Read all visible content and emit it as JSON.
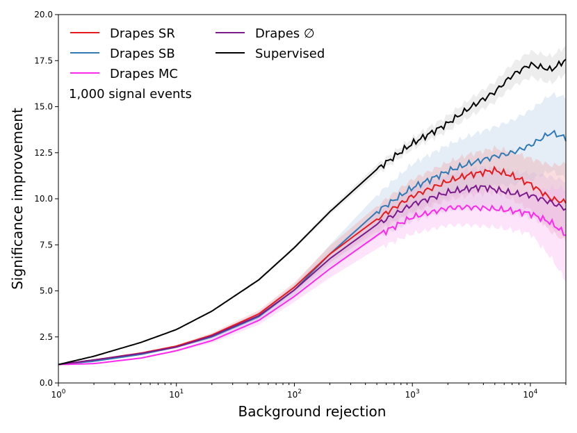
{
  "chart_data": {
    "type": "line",
    "xscale": "log",
    "xlabel": "Background rejection",
    "ylabel": "Significance improvement",
    "xlim": [
      1,
      20000
    ],
    "ylim": [
      0,
      20
    ],
    "xticks": [
      {
        "value": 1,
        "base": "10",
        "exp": "0"
      },
      {
        "value": 10,
        "base": "10",
        "exp": "1"
      },
      {
        "value": 100,
        "base": "10",
        "exp": "2"
      },
      {
        "value": 1000,
        "base": "10",
        "exp": "3"
      },
      {
        "value": 10000,
        "base": "10",
        "exp": "4"
      }
    ],
    "yticks": [
      {
        "value": 0,
        "label": "0.0"
      },
      {
        "value": 2.5,
        "label": "2.5"
      },
      {
        "value": 5,
        "label": "5.0"
      },
      {
        "value": 7.5,
        "label": "7.5"
      },
      {
        "value": 10,
        "label": "10.0"
      },
      {
        "value": 12.5,
        "label": "12.5"
      },
      {
        "value": 15,
        "label": "15.0"
      },
      {
        "value": 17.5,
        "label": "17.5"
      },
      {
        "value": 20,
        "label": "20.0"
      }
    ],
    "annotation": "1,000 signal events",
    "series": [
      {
        "name": "Drapes SR",
        "color": "#e8191c",
        "band_color": "#f2a0a2",
        "points": [
          [
            1,
            1.0
          ],
          [
            2,
            1.25
          ],
          [
            5,
            1.62
          ],
          [
            10,
            2.0
          ],
          [
            20,
            2.6
          ],
          [
            50,
            3.75
          ],
          [
            100,
            5.2
          ],
          [
            200,
            7.0
          ],
          [
            500,
            8.9
          ],
          [
            1000,
            10.15
          ],
          [
            2000,
            10.95
          ],
          [
            3000,
            11.3
          ],
          [
            5000,
            11.55
          ],
          [
            7000,
            11.25
          ],
          [
            10000,
            10.8
          ],
          [
            15000,
            10.0
          ],
          [
            20000,
            9.8
          ]
        ],
        "band_halfwidth": [
          [
            1,
            0.02
          ],
          [
            10,
            0.06
          ],
          [
            100,
            0.25
          ],
          [
            1000,
            0.9
          ],
          [
            5000,
            1.2
          ],
          [
            10000,
            1.4
          ],
          [
            20000,
            2.1
          ]
        ]
      },
      {
        "name": "Drapes SB",
        "color": "#2f7ab5",
        "band_color": "#b5cde4",
        "points": [
          [
            1,
            1.0
          ],
          [
            2,
            1.18
          ],
          [
            5,
            1.55
          ],
          [
            10,
            1.95
          ],
          [
            20,
            2.5
          ],
          [
            50,
            3.6
          ],
          [
            100,
            5.05
          ],
          [
            200,
            7.0
          ],
          [
            500,
            9.3
          ],
          [
            1000,
            10.6
          ],
          [
            2000,
            11.5
          ],
          [
            3000,
            11.9
          ],
          [
            5000,
            12.3
          ],
          [
            7000,
            12.5
          ],
          [
            10000,
            12.9
          ],
          [
            15000,
            13.6
          ],
          [
            20000,
            13.3
          ]
        ],
        "band_halfwidth": [
          [
            1,
            0.02
          ],
          [
            10,
            0.06
          ],
          [
            100,
            0.3
          ],
          [
            200,
            0.5
          ],
          [
            500,
            0.9
          ],
          [
            1000,
            1.3
          ],
          [
            5000,
            1.6
          ],
          [
            10000,
            1.9
          ],
          [
            20000,
            2.2
          ]
        ]
      },
      {
        "name": "Drapes MC",
        "color": "#ff29ee",
        "band_color": "#f9b3f4",
        "points": [
          [
            1,
            1.0
          ],
          [
            2,
            1.05
          ],
          [
            5,
            1.35
          ],
          [
            10,
            1.75
          ],
          [
            20,
            2.3
          ],
          [
            50,
            3.4
          ],
          [
            100,
            4.7
          ],
          [
            200,
            6.2
          ],
          [
            500,
            8.0
          ],
          [
            1000,
            9.0
          ],
          [
            2000,
            9.5
          ],
          [
            3000,
            9.55
          ],
          [
            5000,
            9.45
          ],
          [
            7000,
            9.35
          ],
          [
            10000,
            9.2
          ],
          [
            15000,
            8.7
          ],
          [
            20000,
            8.05
          ]
        ],
        "band_halfwidth": [
          [
            1,
            0.02
          ],
          [
            10,
            0.06
          ],
          [
            100,
            0.3
          ],
          [
            1000,
            0.9
          ],
          [
            5000,
            1.0
          ],
          [
            10000,
            1.1
          ],
          [
            15000,
            1.9
          ],
          [
            20000,
            2.5
          ]
        ]
      },
      {
        "name": "Drapes ∅",
        "color": "#7a1a8b",
        "band_color": "#d9b6de",
        "points": [
          [
            1,
            1.0
          ],
          [
            2,
            1.25
          ],
          [
            5,
            1.6
          ],
          [
            10,
            1.95
          ],
          [
            20,
            2.55
          ],
          [
            50,
            3.65
          ],
          [
            100,
            5.05
          ],
          [
            200,
            6.75
          ],
          [
            500,
            8.6
          ],
          [
            1000,
            9.7
          ],
          [
            2000,
            10.35
          ],
          [
            3000,
            10.55
          ],
          [
            4000,
            10.65
          ],
          [
            7000,
            10.3
          ],
          [
            10000,
            10.2
          ],
          [
            15000,
            9.8
          ],
          [
            20000,
            9.45
          ]
        ],
        "band_halfwidth": [
          [
            1,
            0.02
          ],
          [
            10,
            0.06
          ],
          [
            100,
            0.25
          ],
          [
            1000,
            0.9
          ],
          [
            5000,
            1.1
          ],
          [
            10000,
            1.2
          ],
          [
            20000,
            1.5
          ]
        ]
      },
      {
        "name": "Supervised",
        "color": "#000000",
        "band_color": "#cccccc",
        "points": [
          [
            1,
            1.0
          ],
          [
            2,
            1.45
          ],
          [
            5,
            2.2
          ],
          [
            10,
            2.9
          ],
          [
            20,
            3.9
          ],
          [
            50,
            5.6
          ],
          [
            100,
            7.35
          ],
          [
            200,
            9.3
          ],
          [
            500,
            11.6
          ],
          [
            1000,
            13.0
          ],
          [
            2000,
            14.1
          ],
          [
            3000,
            14.9
          ],
          [
            5000,
            15.8
          ],
          [
            7000,
            16.7
          ],
          [
            10000,
            17.3
          ],
          [
            15000,
            17.0
          ],
          [
            20000,
            17.55
          ]
        ],
        "band_halfwidth": [
          [
            1,
            0.02
          ],
          [
            10,
            0.04
          ],
          [
            100,
            0.1
          ],
          [
            1000,
            0.3
          ],
          [
            5000,
            0.55
          ],
          [
            10000,
            0.7
          ],
          [
            20000,
            0.75
          ]
        ]
      }
    ]
  }
}
